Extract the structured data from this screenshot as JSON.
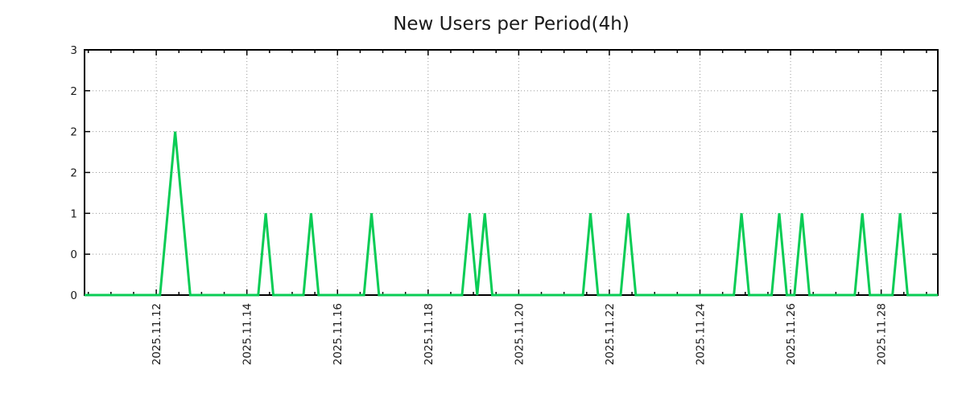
{
  "chart": {
    "title": "New Users per Period(4h)",
    "colors": {
      "line": "#0acc55",
      "axis": "#000000",
      "grid": "#999999",
      "text": "#1a1a1a",
      "background": "#ffffff"
    }
  },
  "chart_data": {
    "type": "line",
    "title": "New Users per Period(4h)",
    "xlabel": "",
    "ylabel": "",
    "ylim": [
      0,
      3
    ],
    "grid": true,
    "legend": false,
    "bin_hours": 4,
    "x_start": "2025-11-10T10:00",
    "x_end": "2025-11-29T06:00",
    "baseline_value": 0,
    "yticks": [
      {
        "value": 0.0,
        "label": "0"
      },
      {
        "value": 0.5,
        "label": "0"
      },
      {
        "value": 1.0,
        "label": "1"
      },
      {
        "value": 1.5,
        "label": "2"
      },
      {
        "value": 2.0,
        "label": "2"
      },
      {
        "value": 2.5,
        "label": "2"
      },
      {
        "value": 3.0,
        "label": "3"
      }
    ],
    "xticks": [
      {
        "time": "2025-11-12T00:00",
        "label": "2025.11.12"
      },
      {
        "time": "2025-11-14T00:00",
        "label": "2025.11.14"
      },
      {
        "time": "2025-11-16T00:00",
        "label": "2025.11.16"
      },
      {
        "time": "2025-11-18T00:00",
        "label": "2025.11.18"
      },
      {
        "time": "2025-11-20T00:00",
        "label": "2025.11.20"
      },
      {
        "time": "2025-11-22T00:00",
        "label": "2025.11.22"
      },
      {
        "time": "2025-11-24T00:00",
        "label": "2025.11.24"
      },
      {
        "time": "2025-11-26T00:00",
        "label": "2025.11.26"
      },
      {
        "time": "2025-11-28T00:00",
        "label": "2025.11.28"
      }
    ],
    "minor_xtick_hours": 12,
    "spikes": [
      {
        "time": "2025-11-12T06:00",
        "value": 1
      },
      {
        "time": "2025-11-12T10:00",
        "value": 2
      },
      {
        "time": "2025-11-12T14:00",
        "value": 1
      },
      {
        "time": "2025-11-14T10:00",
        "value": 1
      },
      {
        "time": "2025-11-15T10:00",
        "value": 1
      },
      {
        "time": "2025-11-16T18:00",
        "value": 1
      },
      {
        "time": "2025-11-18T22:00",
        "value": 1
      },
      {
        "time": "2025-11-19T06:00",
        "value": 1
      },
      {
        "time": "2025-11-21T14:00",
        "value": 1
      },
      {
        "time": "2025-11-22T10:00",
        "value": 1
      },
      {
        "time": "2025-11-24T22:00",
        "value": 1
      },
      {
        "time": "2025-11-25T18:00",
        "value": 1
      },
      {
        "time": "2025-11-26T06:00",
        "value": 1
      },
      {
        "time": "2025-11-27T14:00",
        "value": 1
      },
      {
        "time": "2025-11-28T10:00",
        "value": 1
      }
    ]
  }
}
